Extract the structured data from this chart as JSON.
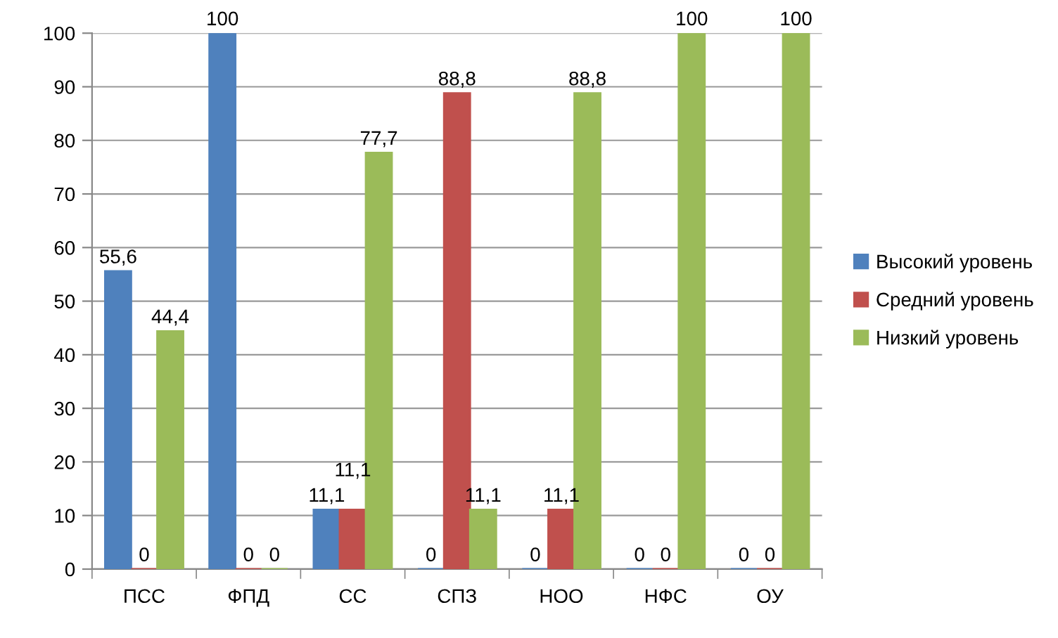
{
  "chart_data": {
    "type": "bar",
    "categories": [
      "ПСС",
      "ФПД",
      "СС",
      "СПЗ",
      "НОО",
      "НФС",
      "ОУ"
    ],
    "series": [
      {
        "name": "Высокий уровень",
        "color": "#4f81bd",
        "values": [
          55.6,
          100,
          11.1,
          0,
          0,
          0,
          0
        ],
        "value_labels": [
          "55,6",
          "100",
          "11,1",
          "0",
          "0",
          "0",
          "0"
        ]
      },
      {
        "name": "Средний уровень",
        "color": "#c0504d",
        "values": [
          0,
          0,
          11.1,
          88.8,
          11.1,
          0,
          0
        ],
        "value_labels": [
          "0",
          "0",
          "11,1",
          "88,8",
          "11,1",
          "0",
          "0"
        ]
      },
      {
        "name": "Низкий уровень",
        "color": "#9bbb59",
        "values": [
          44.4,
          0,
          77.7,
          11.1,
          88.8,
          100,
          100
        ],
        "value_labels": [
          "44,4",
          "0",
          "77,7",
          "11,1",
          "88,8",
          "100",
          "100"
        ]
      }
    ],
    "ylim": [
      0,
      100
    ],
    "yticks": [
      0,
      10,
      20,
      30,
      40,
      50,
      60,
      70,
      80,
      90,
      100
    ],
    "grid": "y",
    "legend": "right"
  }
}
